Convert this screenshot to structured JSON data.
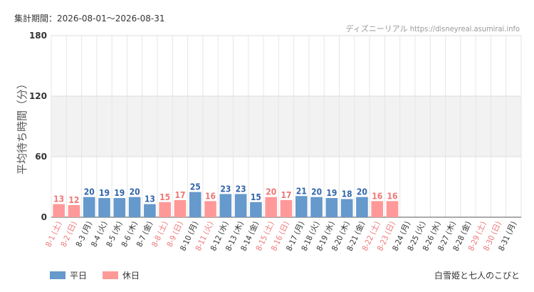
{
  "header": {
    "period_label": "集計期間：2026-08-01～2026-08-31",
    "source": "ディズニーリアル https://disneyreal.asumirai.info"
  },
  "footer": {
    "attraction": "白雪姫と七人のこびと"
  },
  "colors": {
    "weekday": "#6699cc",
    "holiday": "#ff9999",
    "holiday_text": "#ee7777",
    "weekday_text": "#3366aa",
    "band": "#f2f2f2",
    "grid": "#e6e6e6"
  },
  "chart_data": {
    "type": "bar",
    "ylabel": "平均待ち時間（分）",
    "ylim": [
      0,
      180
    ],
    "yticks": [
      0,
      60,
      120,
      180
    ],
    "legend": [
      {
        "name": "平日",
        "color_key": "weekday"
      },
      {
        "name": "休日",
        "color_key": "holiday"
      }
    ],
    "legend_position": "bottom-left",
    "categories": [
      "8-1 (土)",
      "8-2 (日)",
      "8-3 (月)",
      "8-4 (火)",
      "8-5 (水)",
      "8-6 (木)",
      "8-7 (金)",
      "8-8 (土)",
      "8-9 (日)",
      "8-10 (月)",
      "8-11 (火)",
      "8-12 (水)",
      "8-13 (木)",
      "8-14 (金)",
      "8-15 (土)",
      "8-16 (日)",
      "8-17 (月)",
      "8-18 (火)",
      "8-19 (水)",
      "8-20 (木)",
      "8-21 (金)",
      "8-22 (土)",
      "8-23 (日)",
      "8-24 (月)",
      "8-25 (火)",
      "8-26 (水)",
      "8-27 (木)",
      "8-28 (金)",
      "8-29 (土)",
      "8-30 (日)",
      "8-31 (月)"
    ],
    "values": [
      13,
      12,
      20,
      19,
      19,
      20,
      13,
      15,
      17,
      25,
      16,
      23,
      23,
      15,
      20,
      17,
      21,
      20,
      19,
      18,
      20,
      16,
      16,
      null,
      null,
      null,
      null,
      null,
      null,
      null,
      null
    ],
    "day_type": [
      "holiday",
      "holiday",
      "weekday",
      "weekday",
      "weekday",
      "weekday",
      "weekday",
      "holiday",
      "holiday",
      "weekday",
      "holiday",
      "weekday",
      "weekday",
      "weekday",
      "holiday",
      "holiday",
      "weekday",
      "weekday",
      "weekday",
      "weekday",
      "weekday",
      "holiday",
      "holiday",
      "weekday",
      "weekday",
      "weekday",
      "weekday",
      "weekday",
      "holiday",
      "holiday",
      "weekday"
    ]
  }
}
